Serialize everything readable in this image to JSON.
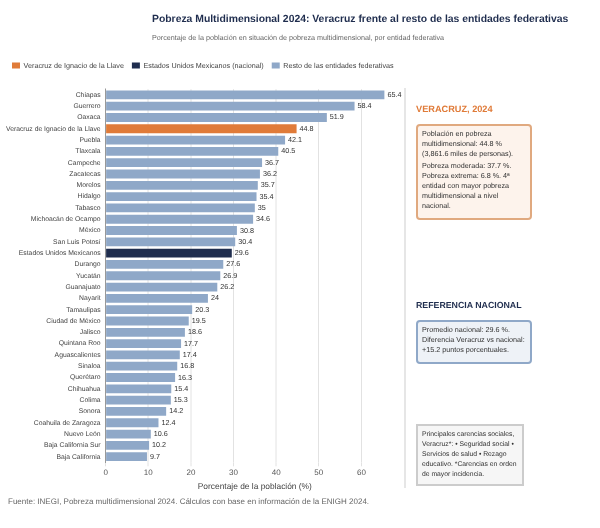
{
  "chart_data": {
    "type": "bar",
    "orientation": "horizontal",
    "title": "Pobreza Multidimensional 2024: Veracruz frente al resto de las entidades federativas",
    "subtitle": "Porcentaje de la población en situación de pobreza multidimensional, por entidad federativa",
    "xlabel": "Porcentaje de la población (%)",
    "categories": [
      "Chiapas",
      "Guerrero",
      "Oaxaca",
      "Veracruz de Ignacio de la Llave",
      "Puebla",
      "Tlaxcala",
      "Campeche",
      "Zacatecas",
      "Morelos",
      "Hidalgo",
      "Tabasco",
      "Michoacán de Ocampo",
      "México",
      "San Luis Potosí",
      "Estados Unidos Mexicanos",
      "Durango",
      "Yucatán",
      "Guanajuato",
      "Nayarit",
      "Tamaulipas",
      "Ciudad de México",
      "Jalisco",
      "Quintana Roo",
      "Aguascalientes",
      "Sinaloa",
      "Querétaro",
      "Chihuahua",
      "Colima",
      "Sonora",
      "Coahuila de Zaragoza",
      "Nuevo León",
      "Baja California Sur",
      "Baja California"
    ],
    "series": [
      {
        "name": "Veracruz de Ignacio de la Llave",
        "color": "#e07b39",
        "values": [
          null,
          null,
          null,
          44.8,
          null,
          null,
          null,
          null,
          null,
          null,
          null,
          null,
          null,
          null,
          null,
          null,
          null,
          null,
          null,
          null,
          null,
          null,
          null,
          null,
          null,
          null,
          null,
          null,
          null,
          null,
          null,
          null,
          null
        ]
      },
      {
        "name": "Estados Unidos Mexicanos (nacional)",
        "color": "#1f2d4e",
        "values": [
          null,
          null,
          null,
          null,
          null,
          null,
          null,
          null,
          null,
          null,
          null,
          null,
          null,
          null,
          29.6,
          null,
          null,
          null,
          null,
          null,
          null,
          null,
          null,
          null,
          null,
          null,
          null,
          null,
          null,
          null,
          null,
          null,
          null
        ]
      },
      {
        "name": "Resto de las entidades federativas",
        "color": "#8fa8c8",
        "values": [
          65.4,
          58.4,
          51.9,
          null,
          42.1,
          40.5,
          36.7,
          36.2,
          35.7,
          35.4,
          35.0,
          34.6,
          30.8,
          30.4,
          null,
          27.6,
          26.9,
          26.2,
          24.0,
          20.3,
          19.5,
          18.6,
          17.7,
          17.4,
          16.8,
          16.3,
          15.4,
          15.3,
          14.2,
          12.4,
          10.6,
          10.2,
          9.7
        ]
      }
    ],
    "xlim": [
      0,
      70
    ],
    "xticks": [
      0,
      10,
      20,
      30,
      40,
      50,
      60
    ],
    "grid": "x",
    "legend": "top left",
    "data_labels": true,
    "annotations": [
      "VERACRUZ, 2024",
      "Población en pobreza multidimensional: 44.8 % (3,861.6 miles de personas). Pobreza moderada: 37.7 %. Pobreza extrema: 6.8 %. 4ª entidad con mayor pobreza multidimensional a nivel nacional.",
      "REFERENCIA NACIONAL",
      "Promedio nacional: 29.6 %. Diferencia Veracruz vs nacional: +15.2 puntos porcentuales.",
      "Principales carencias sociales, Veracruz*: • Seguridad social • Servicios de salud • Rezago educativo. *Carencias en orden de mayor incidencia.",
      "Fuente: INEGI, Pobreza multidimensional 2024. Cálculos con base en información de la ENIGH 2024."
    ]
  }
}
